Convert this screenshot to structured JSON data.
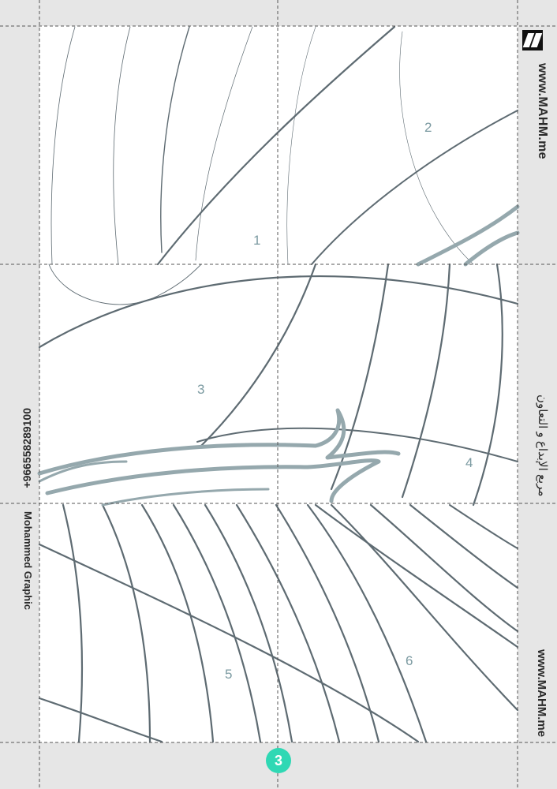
{
  "brand": {
    "website_top": "www.MAHM.me",
    "website_bottom": "www.MAHM.me",
    "tagline_arabic": "مربع الإبداع و التعاون",
    "phone": "+966558289100",
    "author": "Mohammed Graphic",
    "logo_icon": "mahm-logo-icon"
  },
  "pieces": [
    "1",
    "2",
    "3",
    "4",
    "5",
    "6"
  ],
  "page": {
    "number": "3"
  },
  "colors": {
    "background": "#e6e6e6",
    "sheet": "#ffffff",
    "line_dark": "#5e6b72",
    "line_light": "#95a8ad",
    "piece_number": "#7b9aa1",
    "page_badge": "#2fd8b4"
  }
}
